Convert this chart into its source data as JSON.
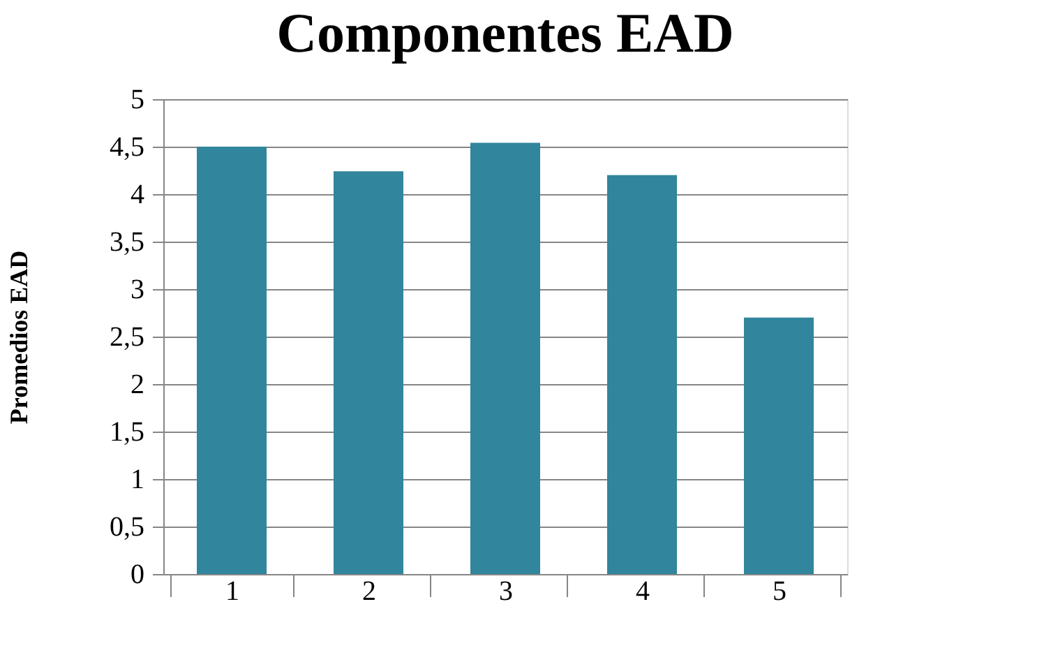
{
  "chart_data": {
    "type": "bar",
    "title": "Componentes EAD",
    "ylabel": "Promedios EAD",
    "categories": [
      "1",
      "2",
      "3",
      "4",
      "5"
    ],
    "values": [
      4.5,
      4.24,
      4.54,
      4.2,
      2.7
    ],
    "color": "#31859c",
    "ylim": [
      0,
      5
    ],
    "yticks": [
      0,
      {
        "value": 0.5,
        "label": "0,5"
      },
      1,
      {
        "value": 1.5,
        "label": "1,5"
      },
      2,
      {
        "value": 2.5,
        "label": "2,5"
      },
      3,
      {
        "value": 3.5,
        "label": "3,5"
      },
      4,
      {
        "value": 4.5,
        "label": "4,5"
      },
      5
    ],
    "grid": "y"
  }
}
